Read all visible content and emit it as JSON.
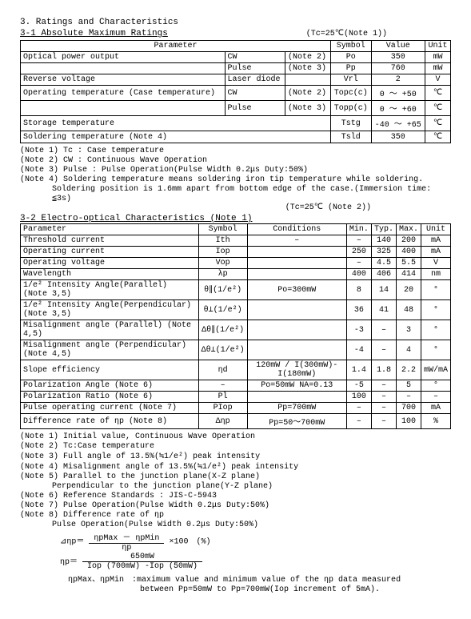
{
  "section": "3. Ratings and Characteristics",
  "sub31": "3-1 Absolute Maximum Ratings",
  "tc1": "(Tc=25℃(Note 1))",
  "t1h": {
    "param": "Parameter",
    "symbol": "Symbol",
    "value": "Value",
    "unit": "Unit"
  },
  "t1": [
    {
      "p": "Optical power output",
      "sub": "CW",
      "n": "(Note 2)",
      "s": "Po",
      "v": "350",
      "u": "mW"
    },
    {
      "p": "",
      "sub": "Pulse",
      "n": "(Note 3)",
      "s": "Pp",
      "v": "760",
      "u": "mW"
    },
    {
      "p": "Reverse voltage",
      "sub": "Laser diode",
      "n": "",
      "s": "Vrl",
      "v": "2",
      "u": "V"
    },
    {
      "p": "Operating temperature (Case temperature)",
      "sub": "CW",
      "n": "(Note 2)",
      "s": "Topc(c)",
      "v": "0 ～ +50",
      "u": "℃"
    },
    {
      "p": "",
      "sub": "Pulse",
      "n": "(Note 3)",
      "s": "Topp(c)",
      "v": "0 ～ +60",
      "u": "℃"
    },
    {
      "p": "Storage temperature",
      "sub": "",
      "n": "",
      "s": "Tstg",
      "v": "-40 ～ +65",
      "u": "℃"
    },
    {
      "p": "Soldering temperature (Note 4)",
      "sub": "",
      "n": "",
      "s": "Tsld",
      "v": "350",
      "u": "℃"
    }
  ],
  "notes1": [
    "(Note 1) Tc : Case temperature",
    "(Note 2) CW : Continuous Wave Operation",
    "(Note 3) Pulse : Pulse Operation(Pulse Width 0.2μs Duty:50%)",
    "(Note 4) Soldering temperature means soldering iron tip temperature while soldering."
  ],
  "notes1_indent": "Soldering position is 1.6mm apart from bottom edge of the case.(Immersion time: ≦3s)",
  "sub32": "3-2 Electro-optical Characteristics (Note 1)",
  "tc2": "(Tc=25℃ (Note 2))",
  "t2h": {
    "param": "Parameter",
    "symbol": "Symbol",
    "cond": "Conditions",
    "min": "Min.",
    "typ": "Typ.",
    "max": "Max.",
    "unit": "Unit"
  },
  "t2": [
    {
      "p": "Threshold current",
      "s": "Ith",
      "c": "–",
      "min": "–",
      "typ": "140",
      "max": "200",
      "u": "mA"
    },
    {
      "p": "Operating current",
      "s": "Iop",
      "c": "",
      "min": "250",
      "typ": "325",
      "max": "400",
      "u": "mA"
    },
    {
      "p": "Operating voltage",
      "s": "Vop",
      "c": "",
      "min": "–",
      "typ": "4.5",
      "max": "5.5",
      "u": "V"
    },
    {
      "p": "Wavelength",
      "s": "λp",
      "c": "",
      "min": "400",
      "typ": "406",
      "max": "414",
      "u": "nm"
    },
    {
      "p": "1/e² Intensity Angle(Parallel)   (Note 3,5)",
      "s": "θ∥(1/e²)",
      "c": "Po=300mW",
      "min": "8",
      "typ": "14",
      "max": "20",
      "u": "°"
    },
    {
      "p": "1/e² Intensity Angle(Perpendicular)(Note 3,5)",
      "s": "θ⊥(1/e²)",
      "c": "",
      "min": "36",
      "typ": "41",
      "max": "48",
      "u": "°"
    },
    {
      "p": "Misalignment angle (Parallel)   (Note 4,5)",
      "s": "Δθ∥(1/e²)",
      "c": "",
      "min": "-3",
      "typ": "–",
      "max": "3",
      "u": "°"
    },
    {
      "p": "Misalignment angle (Perpendicular)(Note 4,5)",
      "s": "Δθ⊥(1/e²)",
      "c": "",
      "min": "-4",
      "typ": "–",
      "max": "4",
      "u": "°"
    },
    {
      "p": "Slope efficiency",
      "s": "ηd",
      "c": "120mW / I(300mW)-I(180mW)",
      "min": "1.4",
      "typ": "1.8",
      "max": "2.2",
      "u": "mW/mA"
    },
    {
      "p": "Polarization Angle (Note 6)",
      "s": "–",
      "c": "Po=50mW NA=0.13",
      "min": "-5",
      "typ": "–",
      "max": "5",
      "u": "°"
    },
    {
      "p": "Polarization Ratio (Note 6)",
      "s": "Pl",
      "c": "",
      "min": "100",
      "typ": "–",
      "max": "–",
      "u": "–"
    },
    {
      "p": "Pulse operating current (Note 7)",
      "s": "PIop",
      "c": "Pp=700mW",
      "min": "–",
      "typ": "–",
      "max": "700",
      "u": "mA"
    },
    {
      "p": "Difference rate of ηp (Note 8)",
      "s": "Δηp",
      "c": "Pp=50～700mW",
      "min": "–",
      "typ": "–",
      "max": "100",
      "u": "%"
    }
  ],
  "notes2": [
    "(Note 1) Initial value, Continuous Wave Operation",
    "(Note 2) Tc:Case temperature",
    "(Note 3) Full angle of 13.5%(≒1/e²) peak intensity",
    "(Note 4) Misalignment angle of 13.5%(≒1/e²) peak intensity",
    "(Note 5) Parallel to the junction plane(X-Z plane)"
  ],
  "notes2_indent1": "Perpendicular to the junction plane(Y-Z plane)",
  "notes2b": [
    "(Note 6) Reference Standards : JIS-C-5943",
    "(Note 7) Pulse Operation(Pulse Width 0.2μs Duty:50%)",
    "(Note 8) Difference rate of ηp"
  ],
  "notes2_indent2": "Pulse Operation(Pulse Width 0.2μs Duty:50%)",
  "formula1": {
    "lhs": "⊿ηp＝",
    "num": "ηpMax － ηpMin",
    "den": "ηp",
    "tail": "×100　(%)"
  },
  "formula2": {
    "lhs": "ηp＝",
    "num": "650mW",
    "den": "Iop (700mW) -Iop (50mW)"
  },
  "footnote1": "ηpMax、ηpMin　:maximum value and minimum value of the ηp data measured",
  "footnote2": "between Pp=50mW to Pp=700mW(Iop increment of 5mA)."
}
